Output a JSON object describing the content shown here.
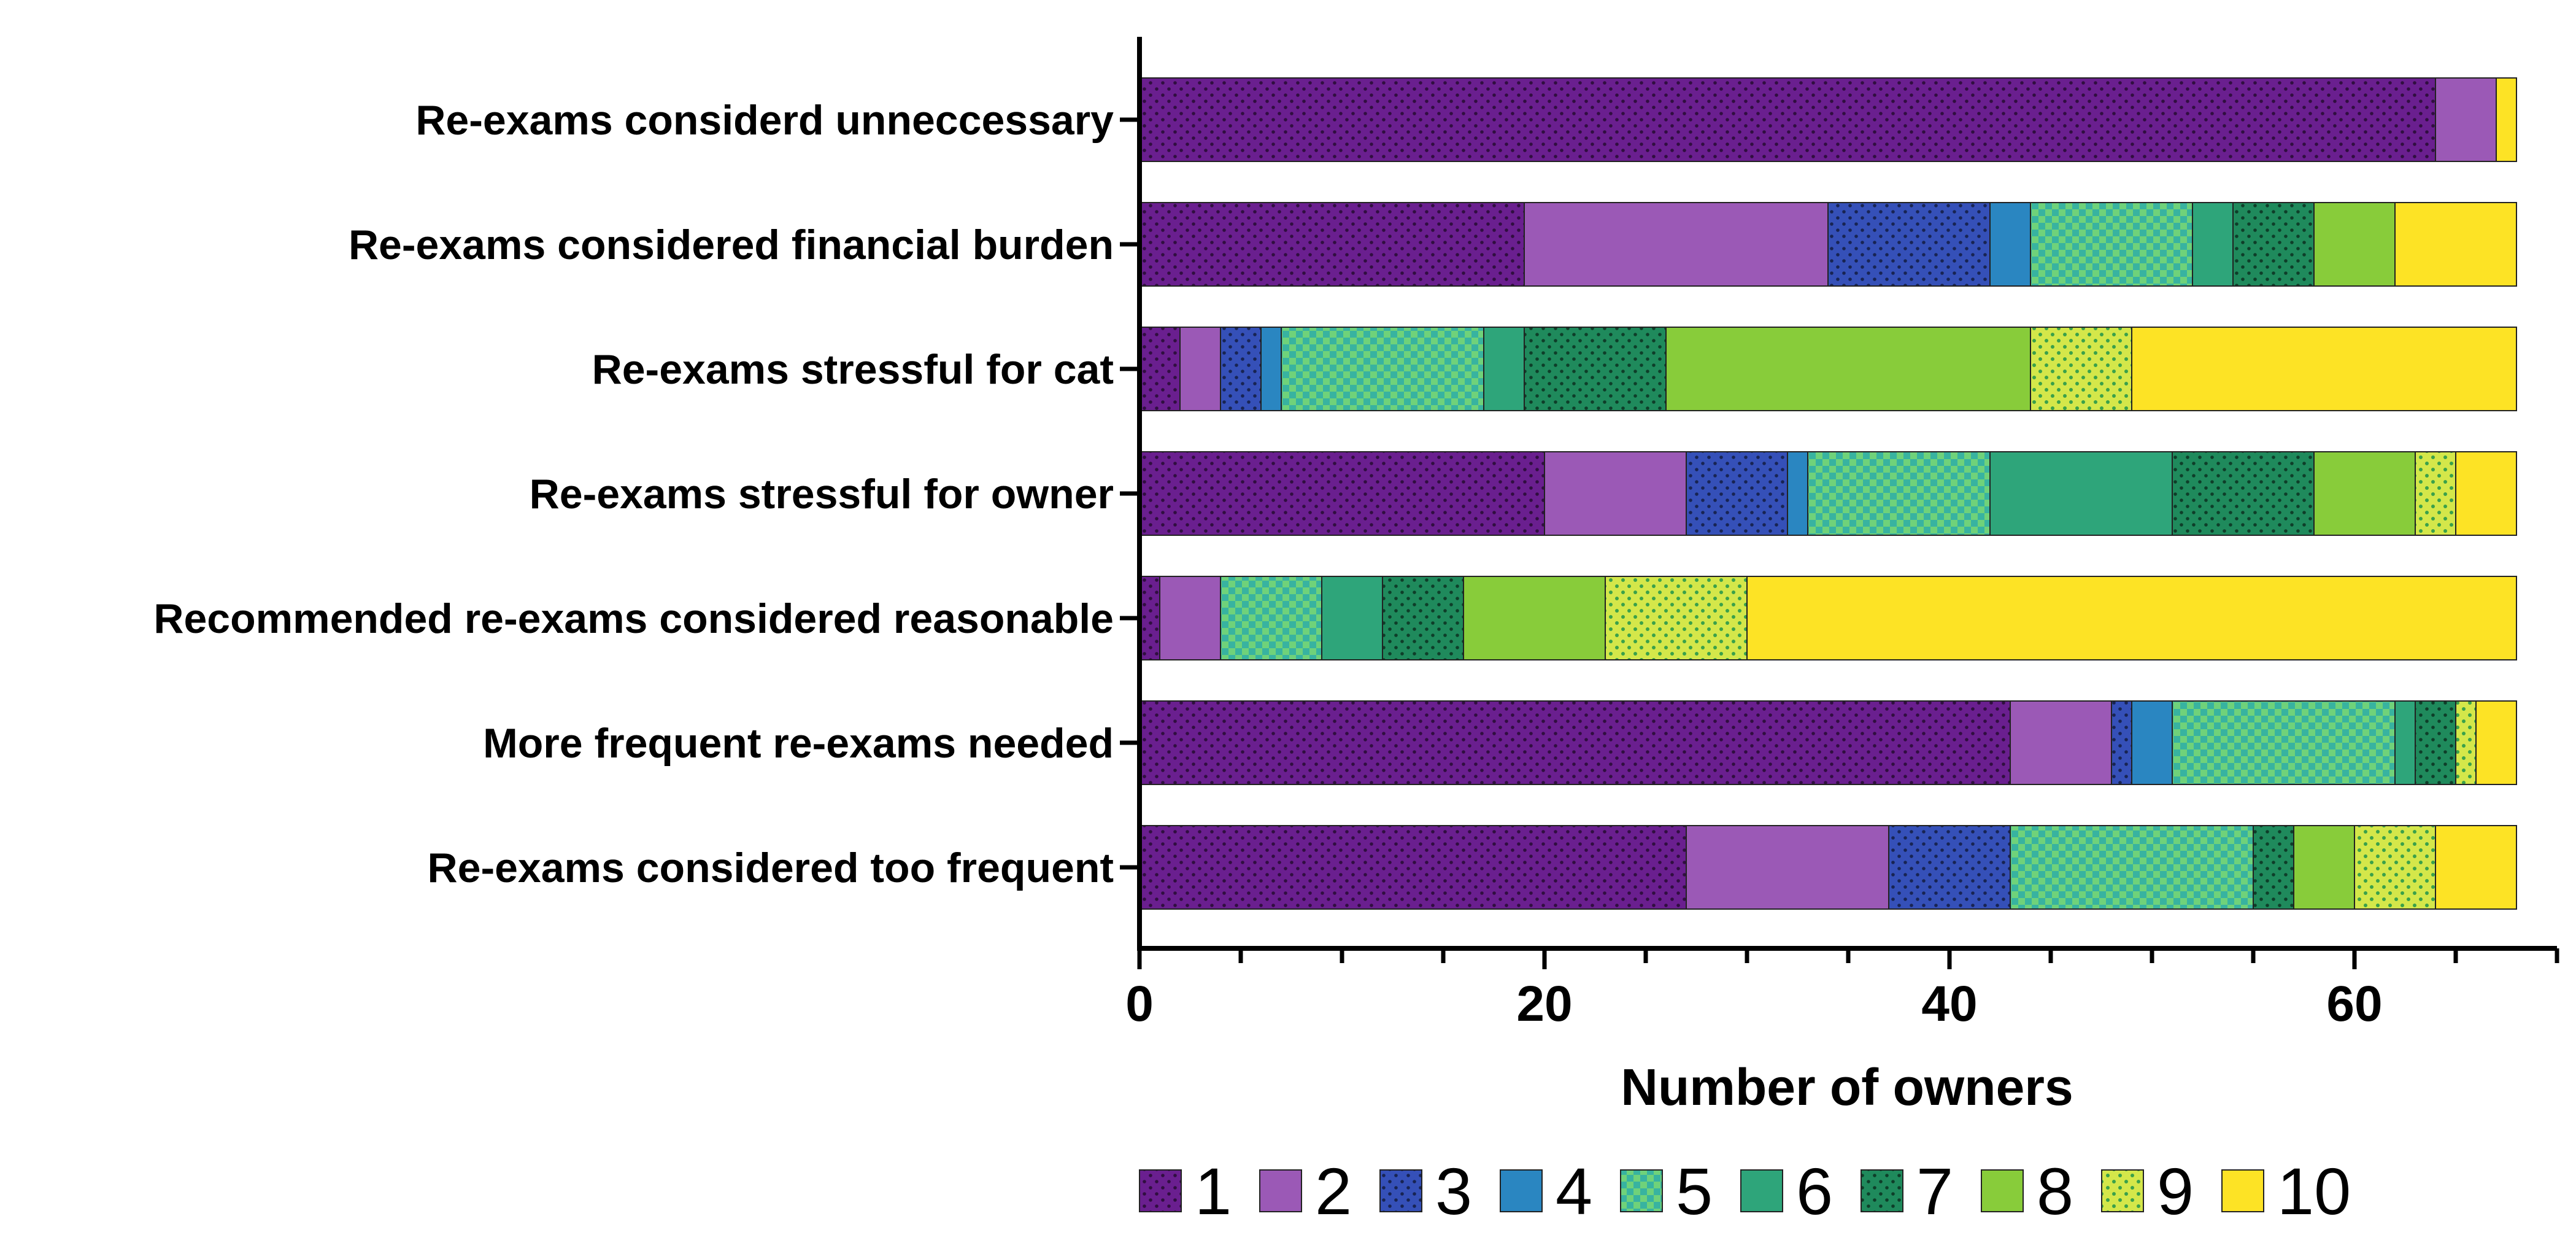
{
  "chart_data": {
    "type": "bar",
    "orientation": "horizontal",
    "stacked": true,
    "xlabel": "Number of owners",
    "xlim": [
      0,
      70
    ],
    "xticks": [
      "0",
      "20",
      "40",
      "60"
    ],
    "xtick_values": [
      0,
      20,
      40,
      60
    ],
    "minor_tick_step": 5,
    "grid": false,
    "legend_position": "bottom",
    "categories": [
      "Re-exams considerd unneccessary",
      "Re-exams considered financial burden",
      "Re-exams stressful for cat",
      "Re-exams stressful for owner",
      "Recommended re-exams considered reasonable",
      "More frequent re-exams needed",
      "Re-exams considered too frequent"
    ],
    "series": [
      {
        "name": "1",
        "color": "#6a1f8f",
        "pattern": "dots-dark",
        "values": [
          64,
          19,
          2,
          20,
          1,
          43,
          27
        ]
      },
      {
        "name": "2",
        "color": "#9b59b6",
        "pattern": "none",
        "values": [
          3,
          15,
          2,
          7,
          3,
          5,
          10
        ]
      },
      {
        "name": "3",
        "color": "#3550b8",
        "pattern": "dots-dark",
        "values": [
          0,
          8,
          2,
          5,
          0,
          1,
          6
        ]
      },
      {
        "name": "4",
        "color": "#2a86c1",
        "pattern": "none",
        "values": [
          0,
          2,
          1,
          1,
          0,
          2,
          0
        ]
      },
      {
        "name": "5",
        "color": "#38b3a0",
        "pattern": "checker",
        "values": [
          0,
          8,
          10,
          9,
          5,
          11,
          12
        ]
      },
      {
        "name": "6",
        "color": "#2ea57a",
        "pattern": "none",
        "values": [
          0,
          2,
          2,
          9,
          3,
          1,
          0
        ]
      },
      {
        "name": "7",
        "color": "#1f8a5c",
        "pattern": "dots-dark",
        "values": [
          0,
          4,
          7,
          7,
          4,
          2,
          2
        ]
      },
      {
        "name": "8",
        "color": "#88cc3a",
        "pattern": "none",
        "values": [
          0,
          4,
          18,
          5,
          7,
          0,
          3
        ]
      },
      {
        "name": "9",
        "color": "#d4e74a",
        "pattern": "dots-green",
        "values": [
          0,
          0,
          5,
          2,
          7,
          1,
          4
        ]
      },
      {
        "name": "10",
        "color": "#fde325",
        "pattern": "none",
        "values": [
          1,
          6,
          19,
          3,
          38,
          2,
          4
        ]
      }
    ]
  }
}
